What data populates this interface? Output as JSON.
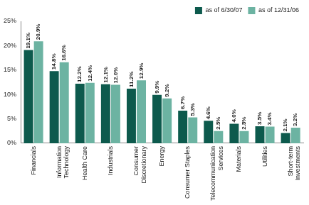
{
  "chart_data": {
    "type": "bar",
    "categories": [
      "Financials",
      "Information\nTechnology",
      "Health Care",
      "Industrials",
      "Consumer\nDiscretionary",
      "Energy",
      "Consumer Staples",
      "Telecommunication\nServices",
      "Materials",
      "Utilities",
      "Short-term\nInvestments"
    ],
    "series": [
      {
        "name": "as of 6/30/07",
        "color": "#0d5a4d",
        "values": [
          19.1,
          14.8,
          12.2,
          12.1,
          11.2,
          9.9,
          6.7,
          4.6,
          4.0,
          3.5,
          2.1
        ],
        "value_labels": [
          "19.1%",
          "14.8%",
          "12.2%",
          "12.1%",
          "11.2%",
          "9.9%",
          "6.7%",
          "4.6%",
          "4.0%",
          "3.5%",
          "2.1%"
        ]
      },
      {
        "name": "as of 12/31/06",
        "color": "#6cb3a2",
        "values": [
          20.9,
          16.6,
          12.4,
          12.0,
          12.9,
          9.2,
          5.3,
          2.5,
          2.5,
          3.4,
          3.2
        ],
        "value_labels": [
          "20.9%",
          "16.6%",
          "12.4%",
          "12.0%",
          "12.9%",
          "9.2%",
          "5.3%",
          "2.5%",
          "2.5%",
          "3.4%",
          "3.2%"
        ]
      }
    ],
    "ylim": [
      0,
      25
    ],
    "yticks": [
      {
        "value": 0,
        "label": "0%"
      },
      {
        "value": 5,
        "label": "5%"
      },
      {
        "value": 10,
        "label": "10%"
      },
      {
        "value": 15,
        "label": "15%"
      },
      {
        "value": 20,
        "label": "20%"
      },
      {
        "value": 25,
        "label": "25%"
      }
    ],
    "grid": false,
    "legend": "top-right",
    "data_labels": true
  }
}
